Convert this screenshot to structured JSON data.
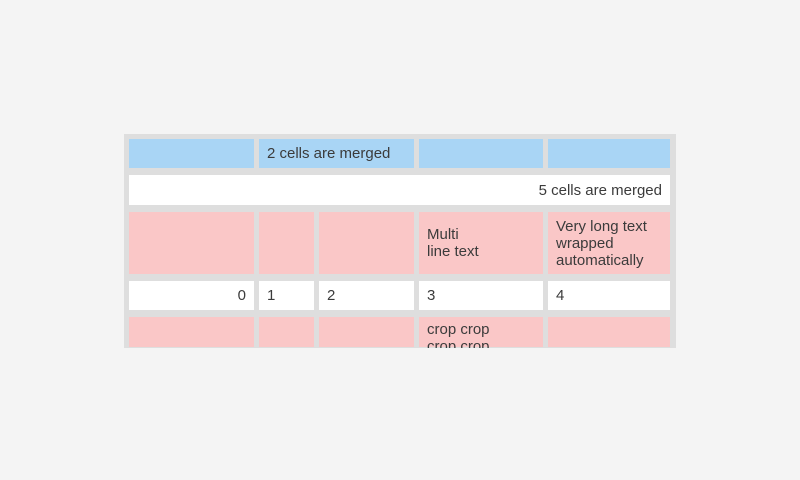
{
  "colors": {
    "page_background": "#f4f4f4",
    "table_frame": "#dedede",
    "cell_blue": "#a9d5f5",
    "cell_pink": "#fac7c7",
    "cell_white": "#ffffff",
    "text": "#3b3b3b"
  },
  "table": {
    "rows": [
      {
        "style": "blue",
        "cells": [
          {
            "text": ""
          },
          {
            "text": "2 cells are merged",
            "colspan": 2
          },
          {
            "text": ""
          },
          {
            "text": ""
          }
        ]
      },
      {
        "style": "white",
        "cells": [
          {
            "text": "5 cells are merged",
            "colspan": 5,
            "align": "right"
          }
        ]
      },
      {
        "style": "pink",
        "cells": [
          {
            "text": ""
          },
          {
            "text": ""
          },
          {
            "text": ""
          },
          {
            "text": "Multi\nline text"
          },
          {
            "text": "Very long text wrapped automatically"
          }
        ]
      },
      {
        "style": "white",
        "cells": [
          {
            "text": "0",
            "align": "right"
          },
          {
            "text": "1"
          },
          {
            "text": "2"
          },
          {
            "text": "3"
          },
          {
            "text": "4"
          }
        ]
      },
      {
        "style": "pink",
        "cells": [
          {
            "text": ""
          },
          {
            "text": ""
          },
          {
            "text": ""
          },
          {
            "text": "crop crop crop crop",
            "cropped": true
          },
          {
            "text": ""
          }
        ]
      }
    ]
  }
}
